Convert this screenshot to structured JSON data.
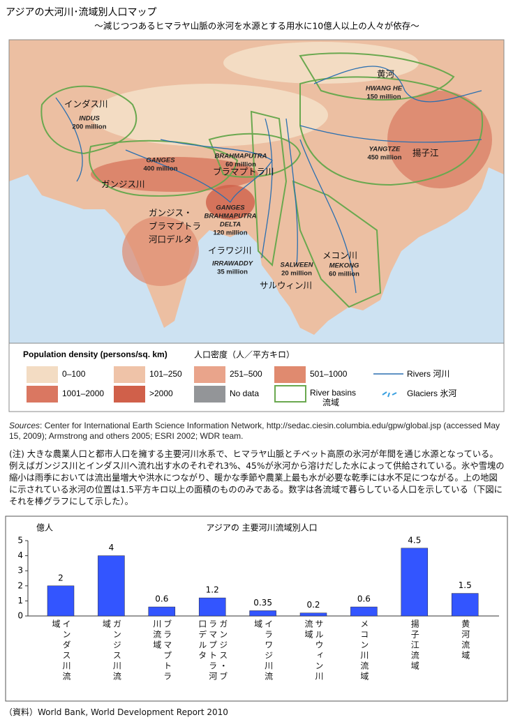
{
  "title": "アジアの大河川･流域別人口マップ",
  "subtitle": "～減じつつあるヒマラヤ山脈の氷河を水源とする用水に10億人以上の人々が依存～",
  "map": {
    "labels": [
      {
        "ja": [
          "インダス川"
        ],
        "en": [
          "INDUS"
        ],
        "pop": "200 million"
      },
      {
        "ja": [
          "ガンジス川"
        ],
        "en": [
          "GANGES"
        ],
        "pop": "400 million"
      },
      {
        "ja": [
          "ブラマプトラ川"
        ],
        "en": [
          "BRAHMAPUTRA"
        ],
        "pop": "60 million"
      },
      {
        "ja": [
          "ガンジス・",
          "ブラマプトラ",
          "河口デルタ"
        ],
        "en": [
          "GANGES",
          "BRAHMAPUTRA",
          "DELTA"
        ],
        "pop": "120 million"
      },
      {
        "ja": [
          "イラワジ川"
        ],
        "en": [
          "IRRAWADDY"
        ],
        "pop": "35 million"
      },
      {
        "ja": [
          "サルウィン川"
        ],
        "en": [
          "SALWEEN"
        ],
        "pop": "20 million"
      },
      {
        "ja": [
          "メコン川"
        ],
        "en": [
          "MEKONG"
        ],
        "pop": "60 million"
      },
      {
        "ja": [
          "揚子江"
        ],
        "en": [
          "YANGTZE"
        ],
        "pop": "450 million"
      },
      {
        "ja": [
          "黄河"
        ],
        "en": [
          "HWANG HE"
        ],
        "pop": "150 million"
      }
    ]
  },
  "legend": {
    "title": "Population density (persons/sq. km)",
    "title_ja": "人口密度（人／平方キロ）",
    "swatches": [
      {
        "label": "0–100",
        "color": "#f3dcc3"
      },
      {
        "label": "101–250",
        "color": "#efc3a8"
      },
      {
        "label": "251–500",
        "color": "#e9a48b"
      },
      {
        "label": "501–1000",
        "color": "#e08a6f"
      },
      {
        "label": "1001–2000",
        "color": "#da7761"
      },
      {
        "label": ">2000",
        "color": "#d0604a"
      },
      {
        "label": "No data",
        "color": "#939598"
      }
    ],
    "basins": [
      "River basins",
      "流域"
    ],
    "rivers": "Rivers  河川",
    "glaciers": "Glaciers  氷河"
  },
  "sources_label": "Sources",
  "sources_text": ": Center for International Earth Science Information Network, http://sedac.ciesin.columbia.edu/gpw/global.jsp (accessed May 15, 2009); Armstrong and others 2005; ESRI 2002; WDR team.",
  "note": "(注) 大きな農業人口と都市人口を擁する主要河川水系で、ヒマラヤ山脈とチベット高原の氷河が年間を通じ水源となっている。例えばガンジス川とインダス川へ流れ出す水のそれぞれ3%、45%が氷河から溶けだした水によって供給されている。氷や雪塊の縮小は雨季においては流出量増大や洪水につながり、暖かな季節や農業上最も水が必要な乾季には水不足につながる。上の地図に示されている氷河の位置は1.5平方キロ以上の面積のもののみである。数字は各流域で暮らしている人口を示している（下図にそれを棒グラフにして示した）。",
  "chart_data": {
    "type": "bar",
    "title": "アジアの 主要河川流域別人口",
    "y_label": "億人",
    "categories": [
      "インダス川流域",
      "ガンジス川流域",
      "ブラマプトラ川流域",
      "ガンジス・ブラマプトラ河口デルタ",
      "イラワジ川流域",
      "サルウィン川流域",
      "メコン川流域",
      "揚子江流域",
      "黄河流域"
    ],
    "values": [
      2,
      4,
      0.6,
      1.2,
      0.35,
      0.2,
      0.6,
      4.5,
      1.5
    ],
    "color": "#3355ff",
    "ylim": [
      0,
      5
    ],
    "yticks": [
      0,
      1,
      2,
      3,
      4,
      5
    ]
  },
  "footer": "（資料）World Bank, World Development Report 2010"
}
